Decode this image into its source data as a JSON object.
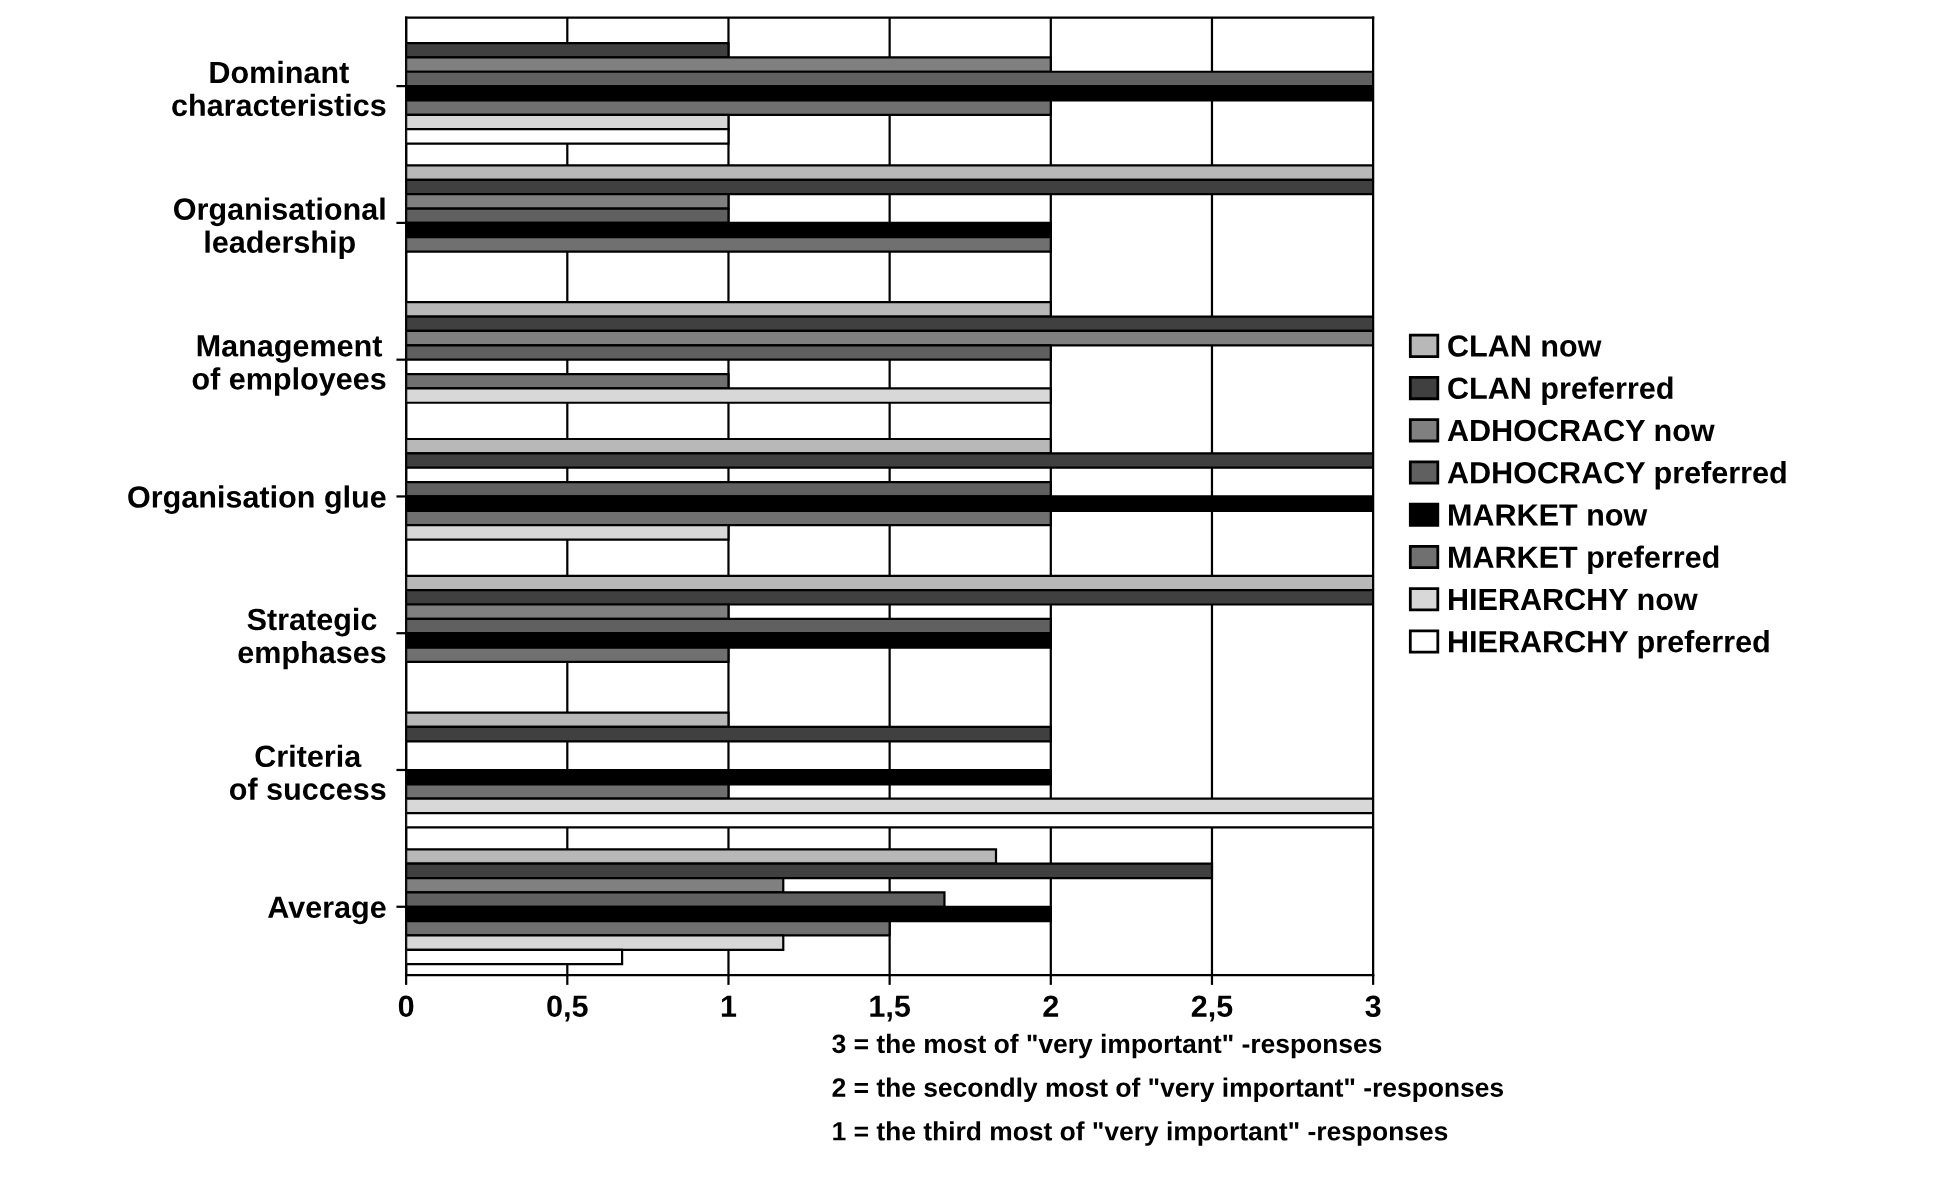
{
  "chart_data": {
    "type": "bar",
    "orientation": "horizontal",
    "categories": [
      "Dominant characteristics",
      "Organisational leadership",
      "Management of employees",
      "Organisation glue",
      "Strategic emphases",
      "Criteria of success",
      "Average"
    ],
    "series": [
      {
        "name": "CLAN now",
        "color": "#b8b8b8",
        "values": [
          0,
          3,
          2,
          2,
          3,
          1,
          1.83
        ]
      },
      {
        "name": "CLAN preferred",
        "color": "#404040",
        "values": [
          1,
          3,
          3,
          3,
          3,
          2,
          2.5
        ]
      },
      {
        "name": "ADHOCRACY now",
        "color": "#808080",
        "values": [
          2,
          1,
          3,
          0,
          1,
          0,
          1.17
        ]
      },
      {
        "name": "ADHOCRACY preferred",
        "color": "#606060",
        "values": [
          3,
          1,
          2,
          2,
          2,
          0,
          1.67
        ]
      },
      {
        "name": "MARKET now",
        "color": "#000000",
        "values": [
          3,
          2,
          0,
          3,
          2,
          2,
          2
        ]
      },
      {
        "name": "MARKET preferred",
        "color": "#707070",
        "values": [
          2,
          2,
          1,
          2,
          1,
          1,
          1.5
        ]
      },
      {
        "name": "HIERARCHY now",
        "color": "#d8d8d8",
        "values": [
          1,
          0,
          2,
          1,
          0,
          3,
          1.17
        ]
      },
      {
        "name": "HIERARCHY preferred",
        "color": "#ffffff",
        "values": [
          1,
          0,
          0,
          0,
          0,
          3,
          0.67
        ]
      }
    ],
    "xlim": [
      0,
      3
    ],
    "xticks": [
      0,
      {
        "value": 0.5,
        "label": "0,5"
      },
      1,
      {
        "value": 1.5,
        "label": "1,5"
      },
      2,
      {
        "value": 2.5,
        "label": "2,5"
      },
      3
    ],
    "grid": "x",
    "legend": "right",
    "annotations": [
      "3 = the most of \"very important\" -responses",
      "2 = the secondly most of \"very important\" -responses",
      "1 = the third most of \"very important\" -responses"
    ]
  }
}
